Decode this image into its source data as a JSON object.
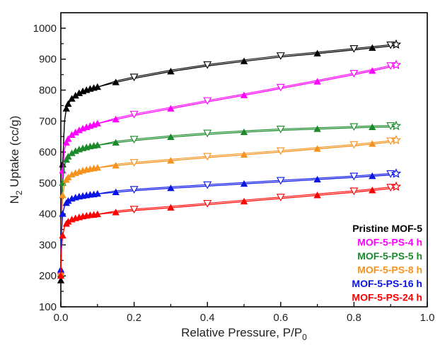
{
  "chart_data": {
    "type": "line",
    "title": "",
    "xlabel": "Relative Pressure, P/P",
    "xlabel_sub": "0",
    "ylabel": "N",
    "ylabel_sub": "2",
    "ylabel_rest": " Uptake (cc/g)",
    "xlim": [
      0.0,
      1.0
    ],
    "ylim": [
      100,
      1050
    ],
    "x_ticks": [
      "0.0",
      "0.2",
      "0.4",
      "0.6",
      "0.8",
      "1.0"
    ],
    "y_ticks": [
      "100",
      "200",
      "300",
      "400",
      "500",
      "600",
      "700",
      "800",
      "900",
      "1000"
    ],
    "legend_position": "bottom-right",
    "markers": {
      "adsorption": "filled-up-triangle",
      "desorption": "open-down-triangle",
      "end": "open-star"
    },
    "series": [
      {
        "name": "Pristine MOF-5",
        "color": "#000000",
        "x": [
          0.0,
          0.002,
          0.005,
          0.01,
          0.015,
          0.02,
          0.03,
          0.04,
          0.05,
          0.06,
          0.07,
          0.08,
          0.09,
          0.1,
          0.15,
          0.2,
          0.3,
          0.4,
          0.5,
          0.6,
          0.7,
          0.8,
          0.85,
          0.9,
          0.915
        ],
        "y": [
          185,
          350,
          560,
          700,
          740,
          755,
          772,
          782,
          790,
          796,
          800,
          804,
          807,
          810,
          825,
          838,
          860,
          878,
          893,
          907,
          918,
          930,
          936,
          942,
          945
        ]
      },
      {
        "name": "MOF-5-PS-4 h",
        "color": "#ff00ff",
        "x": [
          0.0,
          0.002,
          0.005,
          0.01,
          0.015,
          0.02,
          0.03,
          0.04,
          0.05,
          0.06,
          0.07,
          0.08,
          0.09,
          0.1,
          0.15,
          0.2,
          0.3,
          0.4,
          0.5,
          0.6,
          0.7,
          0.8,
          0.85,
          0.9,
          0.915
        ],
        "y": [
          215,
          400,
          540,
          610,
          630,
          642,
          655,
          663,
          670,
          676,
          680,
          684,
          688,
          692,
          705,
          718,
          740,
          762,
          783,
          805,
          827,
          850,
          862,
          875,
          879
        ]
      },
      {
        "name": "MOF-5-PS-5 h",
        "color": "#1a8a2a",
        "x": [
          0.0,
          0.002,
          0.005,
          0.01,
          0.015,
          0.02,
          0.03,
          0.04,
          0.05,
          0.06,
          0.07,
          0.08,
          0.09,
          0.1,
          0.15,
          0.2,
          0.3,
          0.4,
          0.5,
          0.6,
          0.7,
          0.8,
          0.85,
          0.9,
          0.915
        ],
        "y": [
          205,
          380,
          500,
          555,
          575,
          585,
          596,
          603,
          608,
          612,
          615,
          618,
          620,
          622,
          630,
          637,
          648,
          657,
          664,
          670,
          674,
          678,
          680,
          681,
          682
        ]
      },
      {
        "name": "MOF-5-PS-8 h",
        "color": "#f7931e",
        "x": [
          0.0,
          0.002,
          0.005,
          0.01,
          0.015,
          0.02,
          0.03,
          0.04,
          0.05,
          0.06,
          0.07,
          0.08,
          0.09,
          0.1,
          0.15,
          0.2,
          0.3,
          0.4,
          0.5,
          0.6,
          0.7,
          0.8,
          0.85,
          0.9,
          0.915
        ],
        "y": [
          210,
          360,
          460,
          495,
          510,
          518,
          527,
          532,
          536,
          540,
          543,
          545,
          547,
          549,
          556,
          562,
          572,
          582,
          591,
          600,
          610,
          620,
          626,
          632,
          636
        ]
      },
      {
        "name": "MOF-5-PS-16 h",
        "color": "#0a14e6",
        "x": [
          0.0,
          0.002,
          0.005,
          0.01,
          0.015,
          0.02,
          0.03,
          0.04,
          0.05,
          0.06,
          0.07,
          0.08,
          0.09,
          0.1,
          0.15,
          0.2,
          0.3,
          0.4,
          0.5,
          0.6,
          0.7,
          0.8,
          0.85,
          0.9,
          0.915
        ],
        "y": [
          220,
          345,
          400,
          425,
          435,
          442,
          449,
          453,
          456,
          458,
          460,
          462,
          463,
          465,
          470,
          475,
          483,
          490,
          497,
          504,
          511,
          518,
          522,
          526,
          528
        ]
      },
      {
        "name": "MOF-5-PS-24 h",
        "color": "#ff0000",
        "x": [
          0.0,
          0.002,
          0.005,
          0.01,
          0.015,
          0.02,
          0.03,
          0.04,
          0.05,
          0.06,
          0.07,
          0.08,
          0.09,
          0.1,
          0.15,
          0.2,
          0.3,
          0.4,
          0.5,
          0.6,
          0.7,
          0.8,
          0.85,
          0.9,
          0.915
        ],
        "y": [
          200,
          290,
          330,
          358,
          368,
          375,
          382,
          386,
          389,
          392,
          394,
          396,
          397,
          399,
          405,
          411,
          420,
          430,
          440,
          450,
          460,
          470,
          476,
          482,
          486
        ]
      }
    ]
  }
}
